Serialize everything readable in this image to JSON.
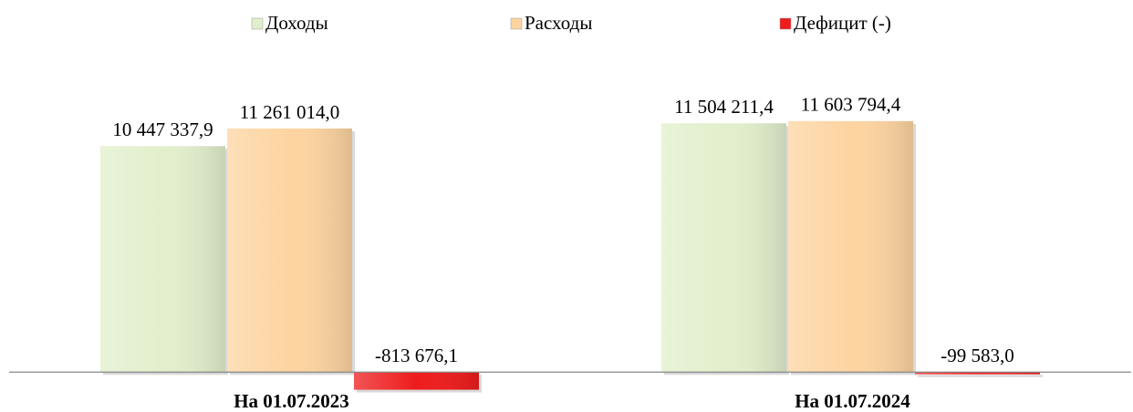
{
  "chart_data": {
    "type": "bar",
    "categories": [
      "На 01.07.2023",
      "На 01.07.2024"
    ],
    "series": [
      {
        "name": "Доходы",
        "color": "#e2efcc",
        "values": [
          10447337.9,
          11504211.4
        ],
        "value_labels": [
          "10 447 337,9",
          "11 504 211,4"
        ]
      },
      {
        "name": "Расходы",
        "color": "#fdd4a0",
        "values": [
          11261014.0,
          11603794.4
        ],
        "value_labels": [
          "11 261 014,0",
          "11 603 794,4"
        ]
      },
      {
        "name": "Дефицит (-)",
        "color": "#ee1c1c",
        "values": [
          -813676.1,
          -99583.0
        ],
        "value_labels": [
          "-813 676,1",
          "-99 583,0"
        ]
      }
    ],
    "ylim": [
      -1000000,
      14000000
    ],
    "legend": "top"
  }
}
